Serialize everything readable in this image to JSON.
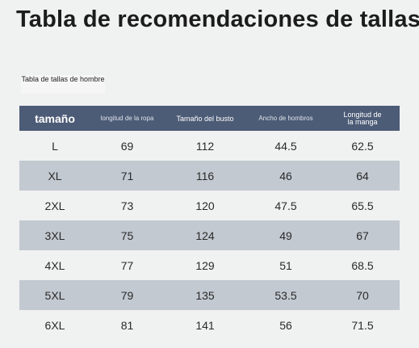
{
  "page": {
    "title": "Tabla de recomendaciones de tallas",
    "subtitle": "Tabla de tallas de hombre"
  },
  "table": {
    "headers": {
      "size": "tamaño",
      "length": "longitud de la ropa",
      "bust": "Tamaño del busto",
      "shoulder": "Ancho de hombros",
      "sleeve_line1": "Longitud de",
      "sleeve_line2": "la manga"
    },
    "rows": [
      {
        "size": "L",
        "length": "69",
        "bust": "112",
        "shoulder": "44.5",
        "sleeve": "62.5"
      },
      {
        "size": "XL",
        "length": "71",
        "bust": "116",
        "shoulder": "46",
        "sleeve": "64"
      },
      {
        "size": "2XL",
        "length": "73",
        "bust": "120",
        "shoulder": "47.5",
        "sleeve": "65.5"
      },
      {
        "size": "3XL",
        "length": "75",
        "bust": "124",
        "shoulder": "49",
        "sleeve": "67"
      },
      {
        "size": "4XL",
        "length": "77",
        "bust": "129",
        "shoulder": "51",
        "sleeve": "68.5"
      },
      {
        "size": "5XL",
        "length": "79",
        "bust": "135",
        "shoulder": "53.5",
        "sleeve": "70"
      },
      {
        "size": "6XL",
        "length": "81",
        "bust": "141",
        "shoulder": "56",
        "sleeve": "71.5"
      }
    ]
  },
  "colors": {
    "header_bg": "#4c5b76",
    "stripe_bg": "#c3c9d1",
    "page_bg": "#f0f1f1"
  }
}
